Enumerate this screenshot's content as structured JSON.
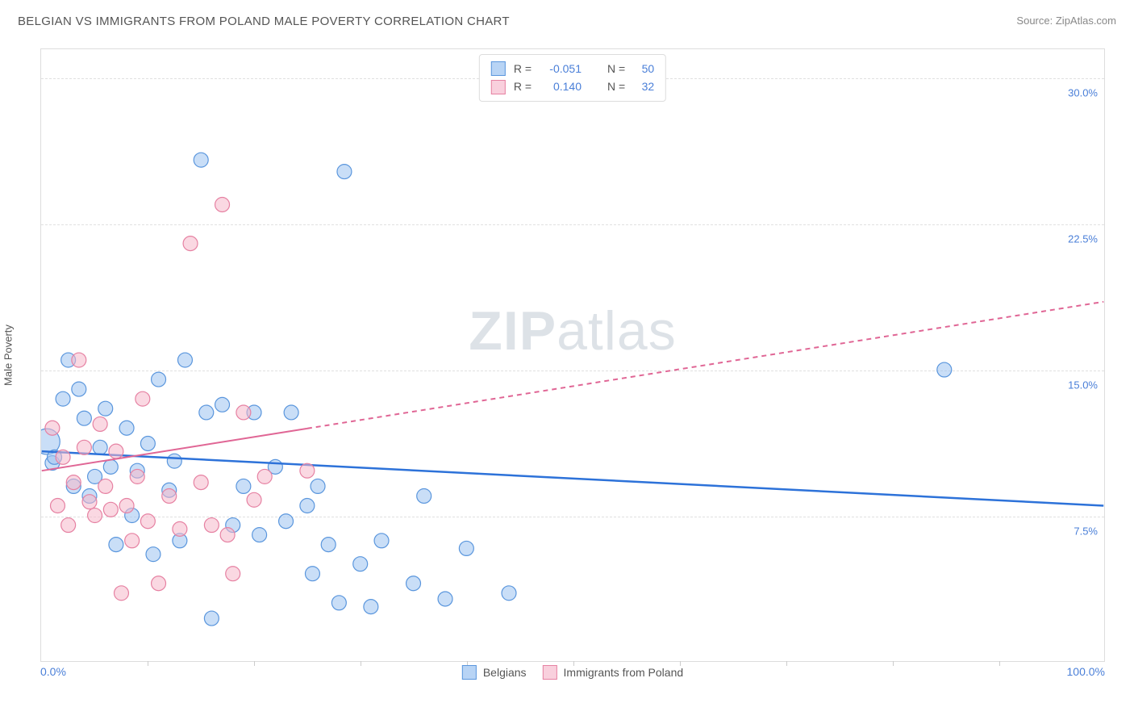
{
  "title": "BELGIAN VS IMMIGRANTS FROM POLAND MALE POVERTY CORRELATION CHART",
  "source_label": "Source:",
  "source_name": "ZipAtlas.com",
  "y_axis_label": "Male Poverty",
  "watermark_bold": "ZIP",
  "watermark_light": "atlas",
  "chart": {
    "type": "scatter-with-trendlines",
    "background_color": "#ffffff",
    "border_color": "#dddddd",
    "grid_color": "#e0e0e0",
    "grid_dash": "4,4",
    "ylim": [
      0,
      31.5
    ],
    "y_ticks": [
      7.5,
      15.0,
      22.5,
      30.0
    ],
    "y_tick_labels": [
      "7.5%",
      "15.0%",
      "22.5%",
      "30.0%"
    ],
    "y_tick_color": "#4a7fd8",
    "xlim": [
      0,
      100
    ],
    "x_left_label": "0.0%",
    "x_right_label": "100.0%",
    "x_label_color": "#4a7fd8",
    "x_tick_positions": [
      10,
      20,
      30,
      40,
      50,
      60,
      70,
      80,
      90
    ],
    "marker_opacity": 0.55,
    "marker_stroke_width": 1.2,
    "default_marker_radius": 9
  },
  "series": [
    {
      "name": "Belgians",
      "fill_color": "#9cc3f0",
      "stroke_color": "#5a96dd",
      "swatch_fill": "#b8d4f5",
      "swatch_border": "#5a96dd",
      "R_label": "R =",
      "R_value": "-0.051",
      "N_label": "N =",
      "N_value": "50",
      "trendline": {
        "x1": 0,
        "y1": 10.8,
        "x2": 100,
        "y2": 8.0,
        "color": "#2d72d9",
        "width": 2.5,
        "dash_after_x": null
      },
      "points": [
        {
          "x": 0.5,
          "y": 11.3,
          "r": 16
        },
        {
          "x": 1,
          "y": 10.2
        },
        {
          "x": 1.2,
          "y": 10.5
        },
        {
          "x": 2,
          "y": 13.5
        },
        {
          "x": 2.5,
          "y": 15.5
        },
        {
          "x": 3,
          "y": 9.0
        },
        {
          "x": 3.5,
          "y": 14.0
        },
        {
          "x": 4,
          "y": 12.5
        },
        {
          "x": 4.5,
          "y": 8.5
        },
        {
          "x": 5,
          "y": 9.5
        },
        {
          "x": 5.5,
          "y": 11.0
        },
        {
          "x": 6,
          "y": 13.0
        },
        {
          "x": 6.5,
          "y": 10.0
        },
        {
          "x": 7,
          "y": 6.0
        },
        {
          "x": 8,
          "y": 12.0
        },
        {
          "x": 8.5,
          "y": 7.5
        },
        {
          "x": 9,
          "y": 9.8
        },
        {
          "x": 10,
          "y": 11.2
        },
        {
          "x": 10.5,
          "y": 5.5
        },
        {
          "x": 11,
          "y": 14.5
        },
        {
          "x": 12,
          "y": 8.8
        },
        {
          "x": 12.5,
          "y": 10.3
        },
        {
          "x": 13,
          "y": 6.2
        },
        {
          "x": 15,
          "y": 25.8
        },
        {
          "x": 15.5,
          "y": 12.8
        },
        {
          "x": 16,
          "y": 2.2
        },
        {
          "x": 17,
          "y": 13.2
        },
        {
          "x": 18,
          "y": 7.0
        },
        {
          "x": 19,
          "y": 9.0
        },
        {
          "x": 20,
          "y": 12.8
        },
        {
          "x": 20.5,
          "y": 6.5
        },
        {
          "x": 22,
          "y": 10.0
        },
        {
          "x": 23,
          "y": 7.2
        },
        {
          "x": 23.5,
          "y": 12.8
        },
        {
          "x": 25,
          "y": 8.0
        },
        {
          "x": 25.5,
          "y": 4.5
        },
        {
          "x": 26,
          "y": 9.0
        },
        {
          "x": 27,
          "y": 6.0
        },
        {
          "x": 28,
          "y": 3.0
        },
        {
          "x": 28.5,
          "y": 25.2
        },
        {
          "x": 30,
          "y": 5.0
        },
        {
          "x": 31,
          "y": 2.8
        },
        {
          "x": 32,
          "y": 6.2
        },
        {
          "x": 35,
          "y": 4.0
        },
        {
          "x": 36,
          "y": 8.5
        },
        {
          "x": 38,
          "y": 3.2
        },
        {
          "x": 40,
          "y": 5.8
        },
        {
          "x": 44,
          "y": 3.5
        },
        {
          "x": 85,
          "y": 15.0
        },
        {
          "x": 13.5,
          "y": 15.5
        }
      ]
    },
    {
      "name": "Immigrants from Poland",
      "fill_color": "#f5b8ca",
      "stroke_color": "#e681a2",
      "swatch_fill": "#f9d0dd",
      "swatch_border": "#e681a2",
      "R_label": "R =",
      "R_value": "0.140",
      "N_label": "N =",
      "N_value": "32",
      "trendline": {
        "x1": 0,
        "y1": 9.8,
        "x2": 100,
        "y2": 18.5,
        "color": "#e06695",
        "width": 2,
        "dash_after_x": 25
      },
      "points": [
        {
          "x": 1,
          "y": 12.0
        },
        {
          "x": 1.5,
          "y": 8.0
        },
        {
          "x": 2,
          "y": 10.5
        },
        {
          "x": 2.5,
          "y": 7.0
        },
        {
          "x": 3,
          "y": 9.2
        },
        {
          "x": 3.5,
          "y": 15.5
        },
        {
          "x": 4,
          "y": 11.0
        },
        {
          "x": 4.5,
          "y": 8.2
        },
        {
          "x": 5,
          "y": 7.5
        },
        {
          "x": 5.5,
          "y": 12.2
        },
        {
          "x": 6,
          "y": 9.0
        },
        {
          "x": 6.5,
          "y": 7.8
        },
        {
          "x": 7,
          "y": 10.8
        },
        {
          "x": 7.5,
          "y": 3.5
        },
        {
          "x": 8,
          "y": 8.0
        },
        {
          "x": 8.5,
          "y": 6.2
        },
        {
          "x": 9,
          "y": 9.5
        },
        {
          "x": 9.5,
          "y": 13.5
        },
        {
          "x": 10,
          "y": 7.2
        },
        {
          "x": 11,
          "y": 4.0
        },
        {
          "x": 12,
          "y": 8.5
        },
        {
          "x": 13,
          "y": 6.8
        },
        {
          "x": 14,
          "y": 21.5
        },
        {
          "x": 15,
          "y": 9.2
        },
        {
          "x": 16,
          "y": 7.0
        },
        {
          "x": 17,
          "y": 23.5
        },
        {
          "x": 17.5,
          "y": 6.5
        },
        {
          "x": 18,
          "y": 4.5
        },
        {
          "x": 19,
          "y": 12.8
        },
        {
          "x": 20,
          "y": 8.3
        },
        {
          "x": 21,
          "y": 9.5
        },
        {
          "x": 25,
          "y": 9.8
        }
      ]
    }
  ],
  "bottom_legend": [
    {
      "label": "Belgians",
      "series_index": 0
    },
    {
      "label": "Immigrants from Poland",
      "series_index": 1
    }
  ]
}
